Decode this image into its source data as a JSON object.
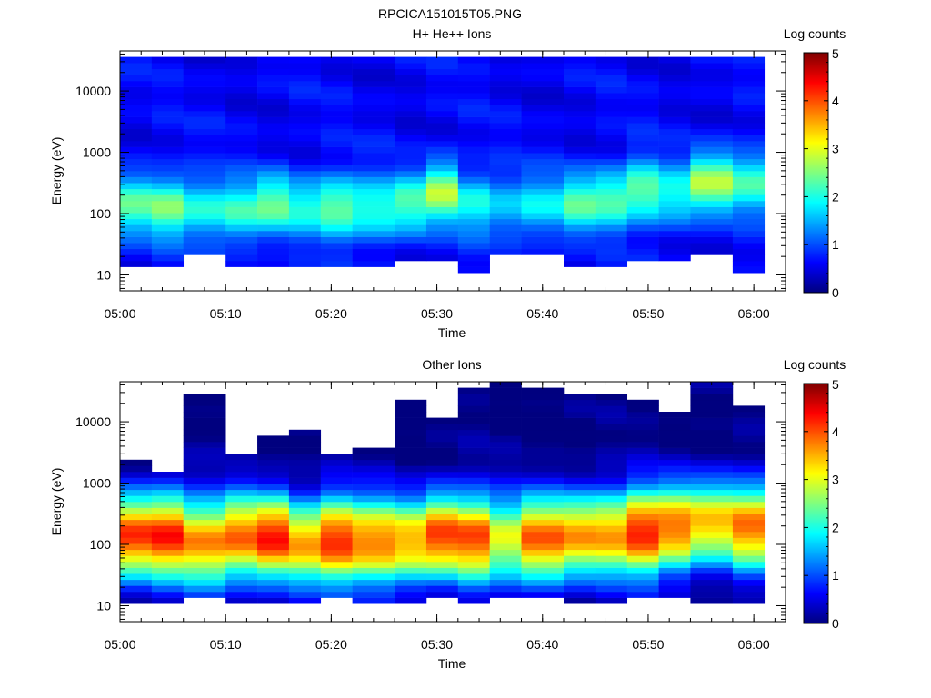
{
  "figure_title": "RPCICA151015T05.PNG",
  "colorscale": {
    "stops": [
      "#00007f",
      "#0000ff",
      "#007fff",
      "#00ffff",
      "#7fff7f",
      "#ffff00",
      "#ff7f00",
      "#ff0000",
      "#7f0000"
    ]
  },
  "chart_data": [
    {
      "type": "heatmap",
      "title": "H+ He++ Ions",
      "xlabel": "Time",
      "ylabel": "Energy (eV)",
      "y_scale": "log",
      "xlim": [
        "05:00",
        "06:03"
      ],
      "ylim": [
        5.5,
        45000
      ],
      "x_ticks": [
        "05:00",
        "05:10",
        "05:20",
        "05:30",
        "05:40",
        "05:50",
        "06:00"
      ],
      "y_ticks": [
        "10",
        "100",
        "1000",
        "10000"
      ],
      "colorbar": {
        "label": "Log counts",
        "range": [
          0,
          5
        ],
        "ticks": [
          "0",
          "1",
          "2",
          "3",
          "4",
          "5"
        ]
      },
      "time_bins": [
        "05:00",
        "05:03",
        "05:06",
        "05:10",
        "05:13",
        "05:16",
        "05:19",
        "05:22",
        "05:26",
        "05:29",
        "05:32",
        "05:35",
        "05:38",
        "05:42",
        "05:45",
        "05:48",
        "05:51",
        "05:54",
        "05:58"
      ],
      "energy_bin_count": 40,
      "peak_energy_ev": [
        140,
        130,
        120,
        110,
        140,
        135,
        130,
        120,
        140,
        220,
        150,
        130,
        130,
        150,
        180,
        230,
        200,
        320,
        330
      ],
      "peak_log_counts": [
        2.2,
        2.5,
        2.1,
        2.2,
        2.3,
        2.0,
        2.5,
        2.2,
        2.2,
        2.7,
        2.0,
        1.7,
        1.8,
        2.2,
        2.3,
        2.5,
        2.0,
        2.6,
        2.2
      ],
      "spectral_width": 0.35,
      "background_log_counts": 0.6,
      "low_energy_cutoff_ev": [
        15,
        15,
        22,
        15,
        15,
        15,
        15,
        15,
        18,
        18,
        12,
        22,
        22,
        15,
        15,
        18,
        18,
        22,
        12
      ],
      "high_energy_cutoff_ev": [
        40000,
        40000,
        40000,
        40000,
        40000,
        40000,
        40000,
        40000,
        40000,
        40000,
        40000,
        40000,
        40000,
        40000,
        40000,
        40000,
        40000,
        40000,
        40000
      ],
      "data_end": "06:01"
    },
    {
      "type": "heatmap",
      "title": "Other Ions",
      "xlabel": "Time",
      "ylabel": "Energy (eV)",
      "y_scale": "log",
      "xlim": [
        "05:00",
        "06:03"
      ],
      "ylim": [
        5.5,
        45000
      ],
      "x_ticks": [
        "05:00",
        "05:10",
        "05:20",
        "05:30",
        "05:40",
        "05:50",
        "06:00"
      ],
      "y_ticks": [
        "10",
        "100",
        "1000",
        "10000"
      ],
      "colorbar": {
        "label": "Log counts",
        "range": [
          0,
          5
        ],
        "ticks": [
          "0",
          "1",
          "2",
          "3",
          "4",
          "5"
        ]
      },
      "time_bins": [
        "05:00",
        "05:03",
        "05:06",
        "05:10",
        "05:13",
        "05:16",
        "05:19",
        "05:22",
        "05:26",
        "05:29",
        "05:32",
        "05:35",
        "05:38",
        "05:42",
        "05:45",
        "05:48",
        "05:51",
        "05:54",
        "05:58"
      ],
      "energy_bin_count": 40,
      "peak_energy_ev": [
        140,
        140,
        110,
        130,
        130,
        110,
        120,
        110,
        110,
        140,
        130,
        120,
        120,
        140,
        150,
        160,
        180,
        220,
        200
      ],
      "peak_log_counts": [
        4.0,
        4.3,
        3.8,
        3.9,
        4.2,
        3.5,
        4.3,
        3.9,
        3.5,
        4.0,
        4.1,
        3.1,
        3.9,
        3.5,
        3.6,
        4.4,
        3.9,
        3.3,
        3.8
      ],
      "spectral_width": 0.5,
      "background_log_counts": 0.0,
      "low_energy_cutoff_ev": [
        10,
        10,
        15,
        12,
        12,
        10,
        15,
        12,
        12,
        15,
        12,
        15,
        15,
        12,
        12,
        15,
        15,
        12,
        12
      ],
      "high_energy_cutoff_ev": [
        2200,
        1500,
        28000,
        2800,
        5500,
        7500,
        2800,
        3500,
        22000,
        11000,
        34000,
        42000,
        38000,
        30000,
        26000,
        22000,
        15000,
        42000,
        18000
      ],
      "data_end": "06:01"
    }
  ]
}
